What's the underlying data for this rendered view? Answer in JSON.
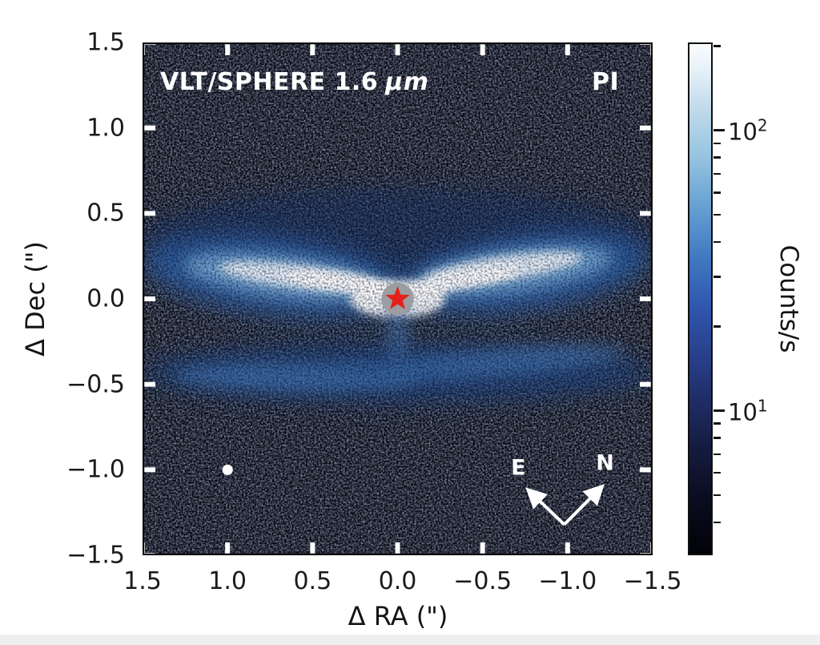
{
  "figure": {
    "background": "#ffffff",
    "bottom_strip_color": "#edeff1"
  },
  "chart_data": {
    "type": "heatmap",
    "title": "",
    "xlabel": "Δ RA (\")",
    "ylabel": "Δ Dec (\")",
    "xlim": [
      1.5,
      -1.5
    ],
    "ylim": [
      -1.5,
      1.5
    ],
    "grid": false,
    "x_ticks": [
      {
        "v": 1.5,
        "label": "1.5"
      },
      {
        "v": 1.0,
        "label": "1.0"
      },
      {
        "v": 0.5,
        "label": "0.5"
      },
      {
        "v": 0.0,
        "label": "0.0"
      },
      {
        "v": -0.5,
        "label": "−0.5"
      },
      {
        "v": -1.0,
        "label": "−1.0"
      },
      {
        "v": -1.5,
        "label": "−1.5"
      }
    ],
    "y_ticks": [
      {
        "v": 1.5,
        "label": "1.5"
      },
      {
        "v": 1.0,
        "label": "1.0"
      },
      {
        "v": 0.5,
        "label": "0.5"
      },
      {
        "v": 0.0,
        "label": "0.0"
      },
      {
        "v": -0.5,
        "label": "−0.5"
      },
      {
        "v": -1.0,
        "label": "−1.0"
      },
      {
        "v": -1.5,
        "label": "−1.5"
      }
    ],
    "annotations": {
      "instrument": "VLT/SPHERE 1.6",
      "unit": "μm",
      "mode": "PI"
    },
    "colorbar": {
      "label": "Counts/s",
      "scale": "log",
      "vmin": 3.05,
      "vmax": 206,
      "major_ticks": [
        {
          "value": 100,
          "base": "10",
          "exp": "2"
        },
        {
          "value": 10,
          "base": "10",
          "exp": "1"
        }
      ],
      "minor_ticks": [
        200,
        90,
        80,
        70,
        60,
        50,
        40,
        30,
        20,
        9,
        8,
        7,
        6,
        5,
        4,
        3
      ],
      "gradient": [
        [
          "#f8fcfe",
          0
        ],
        [
          "#e7f1f8",
          5
        ],
        [
          "#c3dcec",
          12
        ],
        [
          "#97c4e0",
          22
        ],
        [
          "#66a0d2",
          32
        ],
        [
          "#4078c1",
          42
        ],
        [
          "#2f55ac",
          52
        ],
        [
          "#283e88",
          62
        ],
        [
          "#1e2b61",
          71
        ],
        [
          "#141a3d",
          80
        ],
        [
          "#0a0d20",
          89
        ],
        [
          "#020208",
          100
        ]
      ]
    },
    "image_background": "#030309",
    "features": [
      {
        "name": "upper-haze",
        "ra": 0.0,
        "dec": 0.35,
        "a": 1.5,
        "b": 0.3,
        "rot": 0,
        "color": "#16356f",
        "opacity": 0.5,
        "blur": "lg"
      },
      {
        "name": "lower-band-halo",
        "ra": 0.0,
        "dec": -0.43,
        "a": 1.5,
        "b": 0.18,
        "rot": 0,
        "color": "#1d4890",
        "opacity": 0.6,
        "blur": "lg"
      },
      {
        "name": "lower-band-left",
        "ra": 0.6,
        "dec": -0.46,
        "a": 0.72,
        "b": 0.08,
        "rot": 1,
        "color": "#4a82c4",
        "opacity": 0.6,
        "blur": "md"
      },
      {
        "name": "lower-band-right",
        "ra": -0.62,
        "dec": -0.37,
        "a": 0.72,
        "b": 0.08,
        "rot": -5,
        "color": "#4a82c4",
        "opacity": 0.55,
        "blur": "md"
      },
      {
        "name": "lower-band-mid",
        "ra": 0.0,
        "dec": -0.41,
        "a": 0.38,
        "b": 0.07,
        "rot": 0,
        "color": "#33619f",
        "opacity": 0.5,
        "blur": "md"
      },
      {
        "name": "left-wing-halo",
        "ra": 0.72,
        "dec": 0.13,
        "a": 0.78,
        "b": 0.23,
        "rot": 7,
        "color": "#2e63ad",
        "opacity": 0.8,
        "blur": "lg"
      },
      {
        "name": "left-wing-mid",
        "ra": 0.66,
        "dec": 0.13,
        "a": 0.6,
        "b": 0.125,
        "rot": 7,
        "color": "#79aed9",
        "opacity": 0.85,
        "blur": "md"
      },
      {
        "name": "left-wing-core",
        "ra": 0.58,
        "dec": 0.13,
        "a": 0.47,
        "b": 0.068,
        "rot": 7,
        "color": "#ecf4fb",
        "opacity": 0.9,
        "blur": "sm"
      },
      {
        "name": "left-wing-bright",
        "ra": 0.33,
        "dec": 0.1,
        "a": 0.34,
        "b": 0.048,
        "rot": 7,
        "color": "#ffffff",
        "opacity": 0.95,
        "blur": "sm"
      },
      {
        "name": "left-wing-spike",
        "ra": 0.14,
        "dec": 0.055,
        "a": 0.15,
        "b": 0.034,
        "rot": 10,
        "color": "#ffffff",
        "opacity": 0.9,
        "blur": "sm"
      },
      {
        "name": "right-wing-halo",
        "ra": -0.74,
        "dec": 0.15,
        "a": 0.75,
        "b": 0.225,
        "rot": -8,
        "color": "#2e63ad",
        "opacity": 0.8,
        "blur": "lg"
      },
      {
        "name": "right-wing-mid",
        "ra": -0.68,
        "dec": 0.165,
        "a": 0.59,
        "b": 0.125,
        "rot": -8,
        "color": "#79aed9",
        "opacity": 0.85,
        "blur": "md"
      },
      {
        "name": "right-wing-core",
        "ra": -0.62,
        "dec": 0.18,
        "a": 0.47,
        "b": 0.07,
        "rot": -8,
        "color": "#eef5fb",
        "opacity": 0.9,
        "blur": "sm"
      },
      {
        "name": "right-wing-bright",
        "ra": -0.38,
        "dec": 0.11,
        "a": 0.35,
        "b": 0.05,
        "rot": -10,
        "color": "#ffffff",
        "opacity": 0.95,
        "blur": "sm"
      },
      {
        "name": "right-wing-spike",
        "ra": -0.16,
        "dec": 0.045,
        "a": 0.16,
        "b": 0.037,
        "rot": -12,
        "color": "#ffffff",
        "opacity": 0.9,
        "blur": "sm"
      },
      {
        "name": "central-glow",
        "ra": 0.0,
        "dec": 0.0,
        "a": 0.28,
        "b": 0.11,
        "rot": 0,
        "color": "#ffffff",
        "opacity": 0.95,
        "blur": "sm"
      },
      {
        "name": "central-plume",
        "ra": 0.0,
        "dec": -0.165,
        "a": 0.075,
        "b": 0.19,
        "rot": 0,
        "color": "#4e7fc0",
        "opacity": 0.5,
        "blur": "md"
      }
    ],
    "markers": {
      "star": {
        "ra": 0.0,
        "dec": 0.0,
        "color": "#e4201b",
        "mask_color": "#9b9da0",
        "mask_radius_arcsec": 0.095,
        "outer_r_arcsec": 0.075,
        "inner_r_arcsec": 0.031
      },
      "beam": {
        "ra": 1.0,
        "dec": -1.0,
        "radius_arcsec": 0.031,
        "color": "#ffffff"
      }
    },
    "compass": {
      "color": "#ffffff",
      "vertex": {
        "ra": -0.98,
        "dec": -1.32
      },
      "arrows": [
        {
          "label": "E",
          "tip_ra": -0.77,
          "tip_dec": -1.12,
          "label_ra": -0.71,
          "label_dec": -1.03
        },
        {
          "label": "N",
          "tip_ra": -1.2,
          "tip_dec": -1.1,
          "label_ra": -1.22,
          "label_dec": -1.0
        }
      ]
    }
  }
}
